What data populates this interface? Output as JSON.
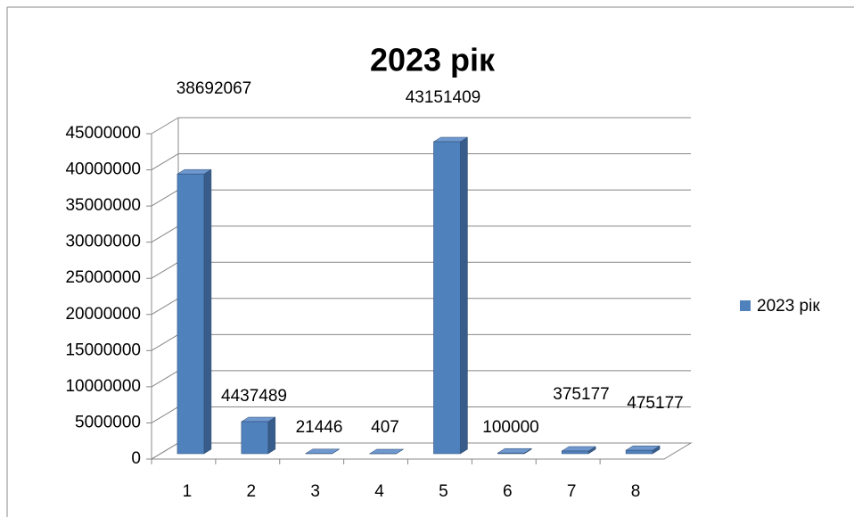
{
  "chart_data": {
    "type": "bar3d",
    "title": "2023 рік",
    "categories": [
      "1",
      "2",
      "3",
      "4",
      "5",
      "6",
      "7",
      "8"
    ],
    "series": [
      {
        "name": "2023 рік",
        "color": "#4f81bd",
        "values": [
          38692067,
          4437489,
          21446,
          407,
          43151409,
          100000,
          375177,
          475177
        ]
      }
    ],
    "ylim": [
      0,
      45000000
    ],
    "yticks": [
      0,
      5000000,
      10000000,
      15000000,
      20000000,
      25000000,
      30000000,
      35000000,
      40000000,
      45000000
    ],
    "grid": true,
    "legend": "right"
  }
}
